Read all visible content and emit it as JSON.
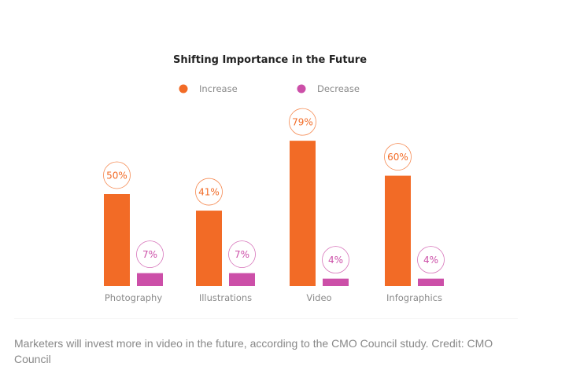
{
  "chart_data": {
    "type": "bar",
    "title": "Shifting Importance in the Future",
    "categories": [
      "Photography",
      "Illustrations",
      "Video",
      "Infographics"
    ],
    "series": [
      {
        "name": "Increase",
        "color": "#f26b26",
        "values": [
          50,
          41,
          79,
          60
        ]
      },
      {
        "name": "Decrease",
        "color": "#cc4fa8",
        "values": [
          7,
          7,
          4,
          4
        ]
      }
    ],
    "value_format": "{v}%",
    "xlabel": "",
    "ylabel": "",
    "ylim": [
      0,
      100
    ],
    "grid": false,
    "legend_position": "top"
  },
  "caption": "Marketers will invest more in video in the future, according to the CMO Council study. Credit: CMO Council"
}
